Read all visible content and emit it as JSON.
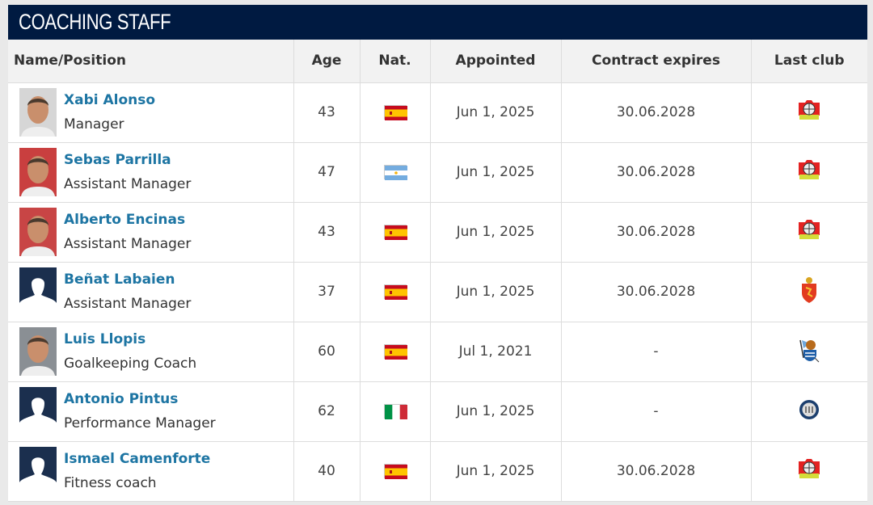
{
  "title": "COACHING STAFF",
  "columns": [
    "Name/Position",
    "Age",
    "Nat.",
    "Appointed",
    "Contract expires",
    "Last club"
  ],
  "colors": {
    "header": "#001a41",
    "name_link": "#1d75a3"
  },
  "rows": [
    {
      "name": "Xabi Alonso",
      "position": "Manager",
      "age": "43",
      "nat": "spain-flag-icon",
      "appointed": "Jun 1, 2025",
      "contract": "30.06.2028",
      "club": "leverkusen-crest-icon",
      "photo": "photo"
    },
    {
      "name": "Sebas Parrilla",
      "position": "Assistant Manager",
      "age": "47",
      "nat": "argentina-flag-icon",
      "appointed": "Jun 1, 2025",
      "contract": "30.06.2028",
      "club": "leverkusen-crest-icon",
      "photo": "photo"
    },
    {
      "name": "Alberto Encinas",
      "position": "Assistant Manager",
      "age": "43",
      "nat": "spain-flag-icon",
      "appointed": "Jun 1, 2025",
      "contract": "30.06.2028",
      "club": "leverkusen-crest-icon",
      "photo": "photo"
    },
    {
      "name": "Beñat Labaien",
      "position": "Assistant Manager",
      "age": "37",
      "nat": "spain-flag-icon",
      "appointed": "Jun 1, 2025",
      "contract": "30.06.2028",
      "club": "zaragoza-crest-icon",
      "photo": "silhouette"
    },
    {
      "name": "Luis Llopis",
      "position": "Goalkeeping Coach",
      "age": "60",
      "nat": "spain-flag-icon",
      "appointed": "Jul 1, 2021",
      "contract": "-",
      "club": "real-sociedad-crest-icon",
      "photo": "photo"
    },
    {
      "name": "Antonio Pintus",
      "position": "Performance Manager",
      "age": "62",
      "nat": "italy-flag-icon",
      "appointed": "Jun 1, 2025",
      "contract": "-",
      "club": "inter-crest-icon",
      "photo": "silhouette"
    },
    {
      "name": "Ismael Camenforte",
      "position": "Fitness coach",
      "age": "40",
      "nat": "spain-flag-icon",
      "appointed": "Jun 1, 2025",
      "contract": "30.06.2028",
      "club": "leverkusen-crest-icon",
      "photo": "silhouette"
    }
  ]
}
